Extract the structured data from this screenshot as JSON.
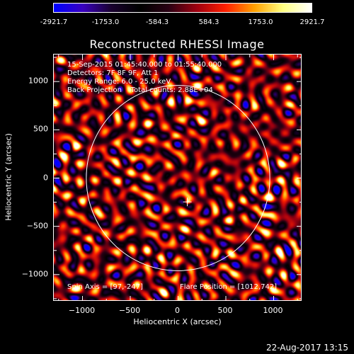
{
  "colorbar": {
    "ticks": [
      "-2921.7",
      "-1753.0",
      "-584.3",
      "584.3",
      "1753.0",
      "2921.7"
    ],
    "tick_values": [
      -2921.7,
      -1753.0,
      -584.3,
      584.3,
      1753.0,
      2921.7
    ],
    "range": [
      -2921.7,
      2921.7
    ],
    "colormap": [
      "#0000ff",
      "#3a00c0",
      "#1a0030",
      "#000000",
      "#2a0014",
      "#a00010",
      "#ff2000",
      "#ffa000",
      "#ffff80",
      "#ffffff"
    ]
  },
  "info": {
    "line1": "15-Sep-2015 01:45:40.000 to 01:55:40.000",
    "line2": "Detectors: 7F 8F 9F, Att 1",
    "line3": "Energy Range: 6.0 - 25.0 keV",
    "line4": "Back Projection    Total counts: 2.88E+04",
    "spin_axis": "Spin Axis = [97,-247]",
    "flare_position": "Flare Position = [1012,742]"
  },
  "timestamp": "22-Aug-2017 13:15",
  "chart_data": {
    "type": "heatmap",
    "title": "Reconstructed RHESSI Image",
    "xlabel": "Heliocentric X (arcsec)",
    "ylabel": "Heliocentric Y (arcsec)",
    "xlim": [
      -1300,
      1300
    ],
    "ylim": [
      -1280,
      1280
    ],
    "x_ticks": [
      -1000,
      -500,
      0,
      500,
      1000
    ],
    "y_ticks": [
      1000,
      500,
      0,
      -500,
      -1000
    ],
    "x_tick_labels": [
      "−1000",
      "−500",
      "0",
      "500",
      "1000"
    ],
    "y_tick_labels": [
      "1000",
      "500",
      "0",
      "−500",
      "−1000"
    ],
    "solar_limb": {
      "center": [
        0,
        0
      ],
      "radius_arcsec": 960
    },
    "cross_marker": [
      97,
      -247
    ],
    "bright_source": [
      97,
      -247
    ],
    "value_range": [
      -2921.7,
      2921.7
    ]
  }
}
